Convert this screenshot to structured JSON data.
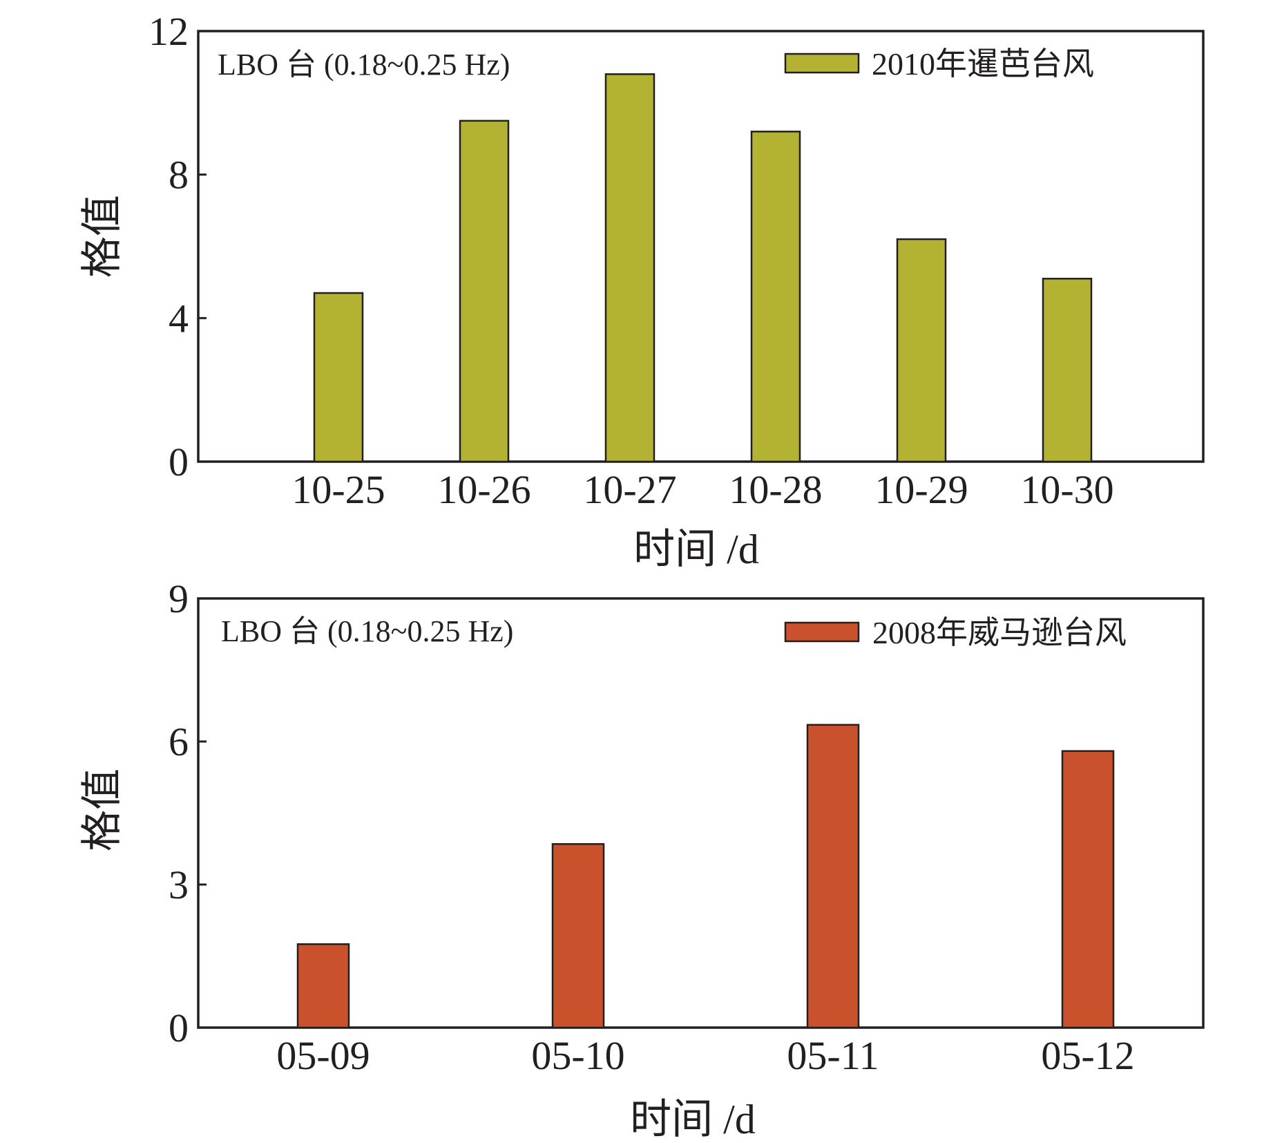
{
  "chart_data": [
    {
      "type": "bar",
      "annotation": "LBO 台 (0.18~0.25 Hz)",
      "xlabel": "时间 /d",
      "ylabel": "格值",
      "categories": [
        "10-25",
        "10-26",
        "10-27",
        "10-28",
        "10-29",
        "10-30"
      ],
      "series": [
        {
          "name": "2010年暹芭台风",
          "values": [
            4.7,
            9.5,
            10.8,
            9.2,
            6.2,
            5.1
          ],
          "color": "#b4b233"
        }
      ],
      "ylim": [
        0,
        12
      ],
      "yticks": [
        0,
        4,
        8,
        12
      ],
      "legend_position": "top-right",
      "grid": false
    },
    {
      "type": "bar",
      "annotation": "LBO 台 (0.18~0.25 Hz)",
      "xlabel": "时间 /d",
      "ylabel": "格值",
      "categories": [
        "05-09",
        "05-10",
        "05-11",
        "05-12"
      ],
      "series": [
        {
          "name": "2008年威马逊台风",
          "values": [
            1.75,
            3.85,
            6.35,
            5.8
          ],
          "color": "#c9522c"
        }
      ],
      "ylim": [
        0,
        9
      ],
      "yticks": [
        0,
        3,
        6,
        9
      ],
      "legend_position": "top-right",
      "grid": false
    }
  ]
}
